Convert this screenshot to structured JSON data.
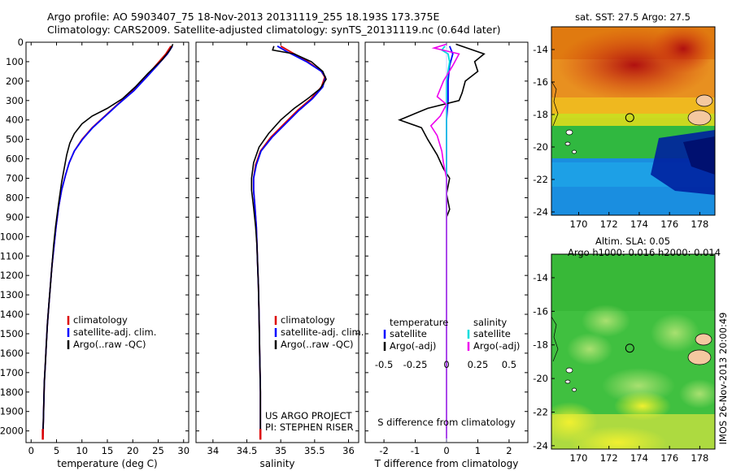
{
  "header": {
    "line1": "Argo profile: AO 5903407_75 18-Nov-2013 20131119_255 18.193S 173.375E",
    "line2": "Climatology: CARS2009. Satellite-adjusted climatology: synTS_20131119.nc (0.64d later)"
  },
  "colors": {
    "climatology": "#dd0000",
    "satellite_adj": "#0000ff",
    "argo": "#000000",
    "salinity_sat": "#00dddd",
    "salinity_argo": "#ee00ee"
  },
  "chart_data": [
    {
      "type": "line",
      "name": "temperature-profile",
      "xlabel": "temperature (deg C)",
      "xlim": [
        -1,
        31
      ],
      "xticks": [
        0,
        5,
        10,
        15,
        20,
        25,
        30
      ],
      "ylim": [
        2060,
        0
      ],
      "yticks": [
        0,
        100,
        200,
        300,
        400,
        500,
        600,
        700,
        800,
        900,
        1000,
        1100,
        1200,
        1300,
        1400,
        1500,
        1600,
        1700,
        1800,
        1900,
        2000
      ],
      "legend": [
        "climatology",
        "satellite-adj. clim.",
        "Argo(..raw -QC)"
      ],
      "series": [
        {
          "name": "climatology",
          "color": "#dd0000",
          "points": [
            [
              27.5,
              20
            ],
            [
              26.5,
              60
            ],
            [
              24.5,
              120
            ],
            [
              22.5,
              180
            ],
            [
              20.0,
              250
            ],
            [
              17.0,
              320
            ],
            [
              14.5,
              380
            ],
            [
              12.0,
              440
            ],
            [
              10.0,
              500
            ],
            [
              8.5,
              560
            ],
            [
              7.5,
              620
            ],
            [
              6.8,
              680
            ],
            [
              6.0,
              760
            ],
            [
              5.4,
              850
            ],
            [
              4.9,
              950
            ],
            [
              4.5,
              1050
            ],
            [
              4.1,
              1150
            ],
            [
              3.8,
              1250
            ],
            [
              3.5,
              1350
            ],
            [
              3.2,
              1450
            ],
            [
              3.0,
              1550
            ],
            [
              2.8,
              1650
            ],
            [
              2.6,
              1750
            ],
            [
              2.5,
              1850
            ],
            [
              2.4,
              1950
            ],
            [
              2.3,
              2040
            ]
          ]
        },
        {
          "name": "satellite-adj. clim.",
          "color": "#0000ff",
          "points": [
            [
              27.8,
              20
            ],
            [
              26.8,
              60
            ],
            [
              24.8,
              120
            ],
            [
              22.7,
              180
            ],
            [
              20.2,
              250
            ],
            [
              17.1,
              320
            ],
            [
              14.6,
              380
            ],
            [
              12.1,
              440
            ],
            [
              10.1,
              500
            ],
            [
              8.5,
              560
            ],
            [
              7.5,
              620
            ],
            [
              6.8,
              680
            ],
            [
              6.0,
              760
            ],
            [
              5.4,
              850
            ],
            [
              4.9,
              950
            ],
            [
              4.5,
              1050
            ],
            [
              4.1,
              1150
            ],
            [
              3.8,
              1250
            ],
            [
              3.5,
              1350
            ],
            [
              3.2,
              1450
            ],
            [
              3.0,
              1550
            ],
            [
              2.8,
              1650
            ],
            [
              2.6,
              1750
            ],
            [
              2.5,
              1850
            ],
            [
              2.4,
              1950
            ],
            [
              2.3,
              2040
            ]
          ]
        },
        {
          "name": "Argo(..raw -QC)",
          "color": "#000000",
          "points": [
            [
              27.9,
              10
            ],
            [
              27.3,
              40
            ],
            [
              25.8,
              90
            ],
            [
              23.0,
              160
            ],
            [
              20.5,
              230
            ],
            [
              18.0,
              290
            ],
            [
              15.0,
              340
            ],
            [
              12.0,
              380
            ],
            [
              10.0,
              420
            ],
            [
              8.5,
              470
            ],
            [
              7.6,
              520
            ],
            [
              7.0,
              580
            ],
            [
              6.5,
              650
            ],
            [
              6.0,
              720
            ],
            [
              5.3,
              850
            ],
            [
              4.8,
              950
            ],
            [
              4.4,
              1050
            ],
            [
              4.1,
              1150
            ],
            [
              3.8,
              1250
            ],
            [
              3.5,
              1350
            ],
            [
              3.2,
              1450
            ],
            [
              3.0,
              1550
            ],
            [
              2.8,
              1650
            ],
            [
              2.6,
              1750
            ],
            [
              2.5,
              1850
            ],
            [
              2.4,
              1950
            ],
            [
              2.3,
              2040
            ]
          ]
        }
      ]
    },
    {
      "type": "line",
      "name": "salinity-profile",
      "xlabel": "salinity",
      "xlim": [
        33.75,
        36.15
      ],
      "xticks": [
        34,
        34.5,
        35,
        35.5,
        36
      ],
      "ylim": [
        2060,
        0
      ],
      "legend": [
        "climatology",
        "satellite-adj. clim.",
        "Argo(..raw -QC)"
      ],
      "annotation": [
        "US ARGO PROJECT",
        "PI: STEPHEN RISER"
      ],
      "series": [
        {
          "name": "climatology",
          "color": "#dd0000",
          "points": [
            [
              35.0,
              20
            ],
            [
              35.15,
              50
            ],
            [
              35.4,
              100
            ],
            [
              35.6,
              150
            ],
            [
              35.65,
              180
            ],
            [
              35.6,
              230
            ],
            [
              35.45,
              290
            ],
            [
              35.25,
              350
            ],
            [
              35.05,
              420
            ],
            [
              34.85,
              490
            ],
            [
              34.7,
              560
            ],
            [
              34.63,
              630
            ],
            [
              34.6,
              700
            ],
            [
              34.6,
              760
            ],
            [
              34.62,
              850
            ],
            [
              34.64,
              950
            ],
            [
              34.65,
              1050
            ],
            [
              34.66,
              1150
            ],
            [
              34.67,
              1250
            ],
            [
              34.68,
              1400
            ],
            [
              34.69,
              1600
            ],
            [
              34.7,
              1800
            ],
            [
              34.7,
              2040
            ]
          ]
        },
        {
          "name": "satellite-adj. clim.",
          "color": "#0000ff",
          "points": [
            [
              34.95,
              20
            ],
            [
              35.1,
              50
            ],
            [
              35.38,
              100
            ],
            [
              35.6,
              150
            ],
            [
              35.66,
              180
            ],
            [
              35.62,
              230
            ],
            [
              35.47,
              290
            ],
            [
              35.27,
              350
            ],
            [
              35.07,
              420
            ],
            [
              34.87,
              490
            ],
            [
              34.71,
              560
            ],
            [
              34.64,
              630
            ],
            [
              34.6,
              700
            ],
            [
              34.6,
              760
            ],
            [
              34.62,
              850
            ],
            [
              34.64,
              950
            ],
            [
              34.65,
              1050
            ],
            [
              34.66,
              1150
            ],
            [
              34.67,
              1250
            ],
            [
              34.68,
              1400
            ],
            [
              34.69,
              1600
            ],
            [
              34.7,
              1800
            ],
            [
              34.7,
              2040
            ]
          ]
        },
        {
          "name": "Argo(..raw -QC)",
          "color": "#000000",
          "points": [
            [
              34.9,
              20
            ],
            [
              34.88,
              40
            ],
            [
              35.2,
              60
            ],
            [
              35.45,
              100
            ],
            [
              35.62,
              150
            ],
            [
              35.67,
              190
            ],
            [
              35.58,
              240
            ],
            [
              35.4,
              290
            ],
            [
              35.2,
              340
            ],
            [
              35.0,
              400
            ],
            [
              34.82,
              470
            ],
            [
              34.68,
              540
            ],
            [
              34.6,
              620
            ],
            [
              34.57,
              700
            ],
            [
              34.57,
              760
            ],
            [
              34.6,
              850
            ],
            [
              34.63,
              950
            ],
            [
              34.65,
              1050
            ],
            [
              34.66,
              1150
            ],
            [
              34.67,
              1250
            ],
            [
              34.68,
              1400
            ],
            [
              34.69,
              1600
            ],
            [
              34.7,
              1800
            ],
            [
              34.7,
              2040
            ]
          ]
        }
      ]
    },
    {
      "type": "line",
      "name": "difference-profile",
      "xlabel": "T difference from climatology",
      "xlabel_top": "S difference from climatology",
      "xlim": [
        -2.6,
        2.6
      ],
      "xticks": [
        -2,
        -1,
        0,
        1,
        2
      ],
      "xticks_s": [
        -0.5,
        -0.25,
        0,
        0.25,
        0.5
      ],
      "xticks_s_labels": [
        "-0.5",
        "-0.25",
        "0",
        "0.25",
        "0.5"
      ],
      "ylim": [
        2060,
        0
      ],
      "legend_left_title": "temperature",
      "legend_right_title": "salinity",
      "legend_left": [
        "satellite",
        "Argo(-adj)"
      ],
      "legend_right": [
        "satellite",
        "Argo(-adj)"
      ],
      "series": [
        {
          "name": "T satellite",
          "color": "#0000ff",
          "points": [
            [
              0.1,
              20
            ],
            [
              0.2,
              60
            ],
            [
              0.1,
              120
            ],
            [
              0.05,
              200
            ],
            [
              0.05,
              300
            ],
            [
              0.0,
              400
            ],
            [
              0.0,
              600
            ],
            [
              0.0,
              2040
            ]
          ]
        },
        {
          "name": "T Argo(-adj)",
          "color": "#000000",
          "points": [
            [
              0.3,
              10
            ],
            [
              1.2,
              60
            ],
            [
              0.9,
              100
            ],
            [
              1.0,
              150
            ],
            [
              0.6,
              200
            ],
            [
              0.5,
              260
            ],
            [
              0.4,
              300
            ],
            [
              -0.6,
              340
            ],
            [
              -1.5,
              400
            ],
            [
              -0.8,
              440
            ],
            [
              -0.6,
              500
            ],
            [
              -0.3,
              580
            ],
            [
              -0.1,
              650
            ],
            [
              0.1,
              700
            ],
            [
              0.0,
              780
            ],
            [
              0.1,
              860
            ],
            [
              0.0,
              900
            ],
            [
              0.0,
              2040
            ]
          ]
        },
        {
          "name": "S satellite",
          "color": "#00dddd",
          "points": [
            [
              -0.05,
              20
            ],
            [
              -0.15,
              40
            ],
            [
              0.05,
              60
            ],
            [
              0.1,
              100
            ],
            [
              0.05,
              150
            ],
            [
              0.0,
              200
            ],
            [
              0.0,
              300
            ],
            [
              0.0,
              2040
            ]
          ]
        },
        {
          "name": "S Argo(-adj)",
          "color": "#ee00ee",
          "points": [
            [
              0.0,
              10
            ],
            [
              -0.4,
              30
            ],
            [
              0.4,
              60
            ],
            [
              0.2,
              120
            ],
            [
              -0.1,
              200
            ],
            [
              -0.3,
              280
            ],
            [
              0.0,
              320
            ],
            [
              -0.2,
              380
            ],
            [
              -0.5,
              430
            ],
            [
              -0.3,
              480
            ],
            [
              -0.15,
              560
            ],
            [
              -0.1,
              620
            ],
            [
              0.0,
              700
            ],
            [
              0.0,
              2040
            ]
          ]
        }
      ]
    }
  ],
  "maps": [
    {
      "name": "sst-map",
      "title": "sat. SST: 27.5 Argo: 27.5",
      "xticks": [
        170,
        172,
        174,
        176,
        178
      ],
      "yticks": [
        -14,
        -16,
        -18,
        -20,
        -22,
        -24
      ],
      "lon_range": [
        168.2,
        179
      ],
      "lat_range": [
        -24.2,
        -12.6
      ],
      "argo_position": [
        173.375,
        -18.193
      ]
    },
    {
      "name": "sla-map",
      "title_line1": "Altim. SLA: 0.05",
      "title_line2": "Argo h1000: 0.016 h2000: 0.014",
      "xticks": [
        170,
        172,
        174,
        176,
        178
      ],
      "yticks": [
        -14,
        -16,
        -18,
        -20,
        -22,
        -24
      ],
      "lon_range": [
        168.2,
        179
      ],
      "lat_range": [
        -24.2,
        -12.6
      ],
      "argo_position": [
        173.375,
        -18.193
      ]
    }
  ],
  "imos_label": "IMOS 26-Nov-2013 20:00:49"
}
